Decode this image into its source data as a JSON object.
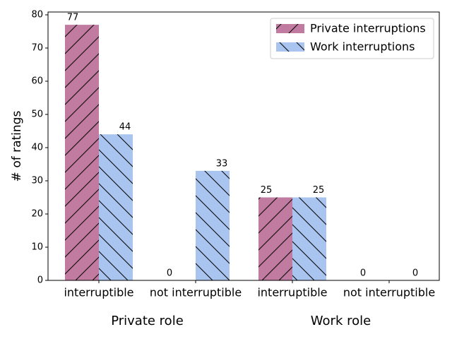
{
  "chart_data": {
    "type": "bar",
    "categories": [
      "interruptible",
      "not interruptible",
      "interruptible",
      "not interruptible"
    ],
    "group_labels": [
      "Private role",
      "Work role"
    ],
    "y_label": "# of ratings",
    "series": [
      {
        "name": "Private interruptions",
        "color": "#c27ba0",
        "hatch": "/",
        "values": [
          77,
          0,
          25,
          0
        ]
      },
      {
        "name": "Work interruptions",
        "color": "#a9c4ee",
        "hatch": "\\",
        "values": [
          44,
          33,
          25,
          0
        ]
      }
    ],
    "ylim": [
      0,
      80.85
    ],
    "yticks": [
      0,
      10,
      20,
      30,
      40,
      50,
      60,
      70,
      80
    ],
    "legend": "upper right"
  }
}
